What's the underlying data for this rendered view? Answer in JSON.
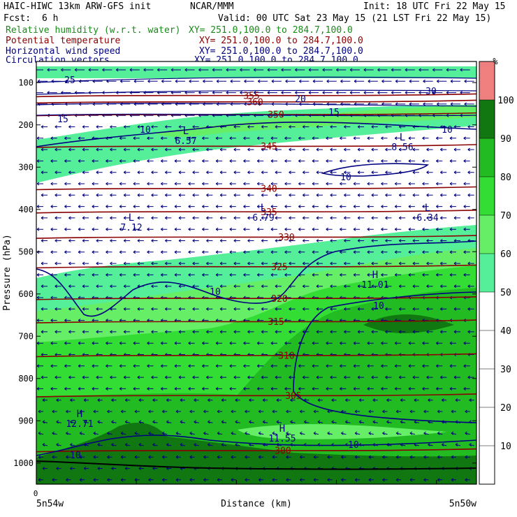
{
  "header": {
    "model": "HAIC-HIWC 13km ARW-GFS init",
    "org": "NCAR/MMM",
    "init": "Init: 18 UTC Fri 22 May 15",
    "fcst_label": "Fcst:",
    "fcst_value": "6 h",
    "valid": "Valid: 00 UTC Sat 23 May 15 (21 LST Fri 22 May 15)"
  },
  "legend_lines": [
    {
      "name": "Relative humidity (w.r.t. water)",
      "xy": "XY= 251.0,100.0 to 284.7,100.0"
    },
    {
      "name": "Potential temperature",
      "xy": "XY= 251.0,100.0 to 284.7,100.0"
    },
    {
      "name": "Horizontal wind speed",
      "xy": "XY= 251.0,100.0 to 284.7,100.0"
    },
    {
      "name": "Circulation vectors",
      "xy": "XY= 251.0,100.0 to 284.7,100.0"
    }
  ],
  "colors": {
    "rh_green": "#1a8a1a",
    "theta_red": "#8b0000",
    "wind_navy": "#000080",
    "vector_navy": "#000080",
    "terrain": "#000000"
  },
  "chart_data": {
    "type": "heatmap",
    "xlabel": "Distance (km)",
    "ylabel": "Pressure (hPa)",
    "x_tick_labels": [
      "0"
    ],
    "x_endpoints": [
      "5n54w",
      "5n50w"
    ],
    "y_ticks": [
      100,
      200,
      300,
      400,
      500,
      600,
      700,
      800,
      900,
      1000
    ],
    "ylim": [
      1050,
      50
    ],
    "colorbar": {
      "unit": "%",
      "ticks": [
        10,
        20,
        30,
        40,
        50,
        60,
        70,
        80,
        90,
        100
      ],
      "bands": [
        {
          "from": 0,
          "to": 50,
          "color": "#ffffff"
        },
        {
          "from": 50,
          "to": 60,
          "color": "#55ee99"
        },
        {
          "from": 60,
          "to": 70,
          "color": "#66ee66"
        },
        {
          "from": 70,
          "to": 80,
          "color": "#33dd33"
        },
        {
          "from": 80,
          "to": 90,
          "color": "#22bb22"
        },
        {
          "from": 90,
          "to": 100,
          "color": "#117711"
        },
        {
          "from": 100,
          "to": 110,
          "color": "#f08080"
        }
      ]
    },
    "theta_contours": [
      {
        "label": "300",
        "p": 970
      },
      {
        "label": "305",
        "p": 840
      },
      {
        "label": "310",
        "p": 745
      },
      {
        "label": "315",
        "p": 665
      },
      {
        "label": "320",
        "p": 610
      },
      {
        "label": "325",
        "p": 535
      },
      {
        "label": "330",
        "p": 465
      },
      {
        "label": "335",
        "p": 405
      },
      {
        "label": "340",
        "p": 350
      },
      {
        "label": "345",
        "p": 250
      },
      {
        "label": "350",
        "p": 175
      },
      {
        "label": "355",
        "p": 130
      },
      {
        "label": "360",
        "p": 145
      }
    ],
    "wind_labels": [
      "10",
      "10",
      "10",
      "10",
      "10",
      "10",
      "10",
      "15",
      "15",
      "20",
      "25",
      "30"
    ],
    "extrema": [
      {
        "type": "L",
        "value": "6.57"
      },
      {
        "type": "L",
        "value": "8.56"
      },
      {
        "type": "L",
        "value": "7.12"
      },
      {
        "type": "L",
        "value": "6.79"
      },
      {
        "type": "L",
        "value": "6.34"
      },
      {
        "type": "H",
        "value": "11.01"
      },
      {
        "type": "H",
        "value": "12.71"
      },
      {
        "type": "H",
        "value": "11.55"
      }
    ]
  }
}
